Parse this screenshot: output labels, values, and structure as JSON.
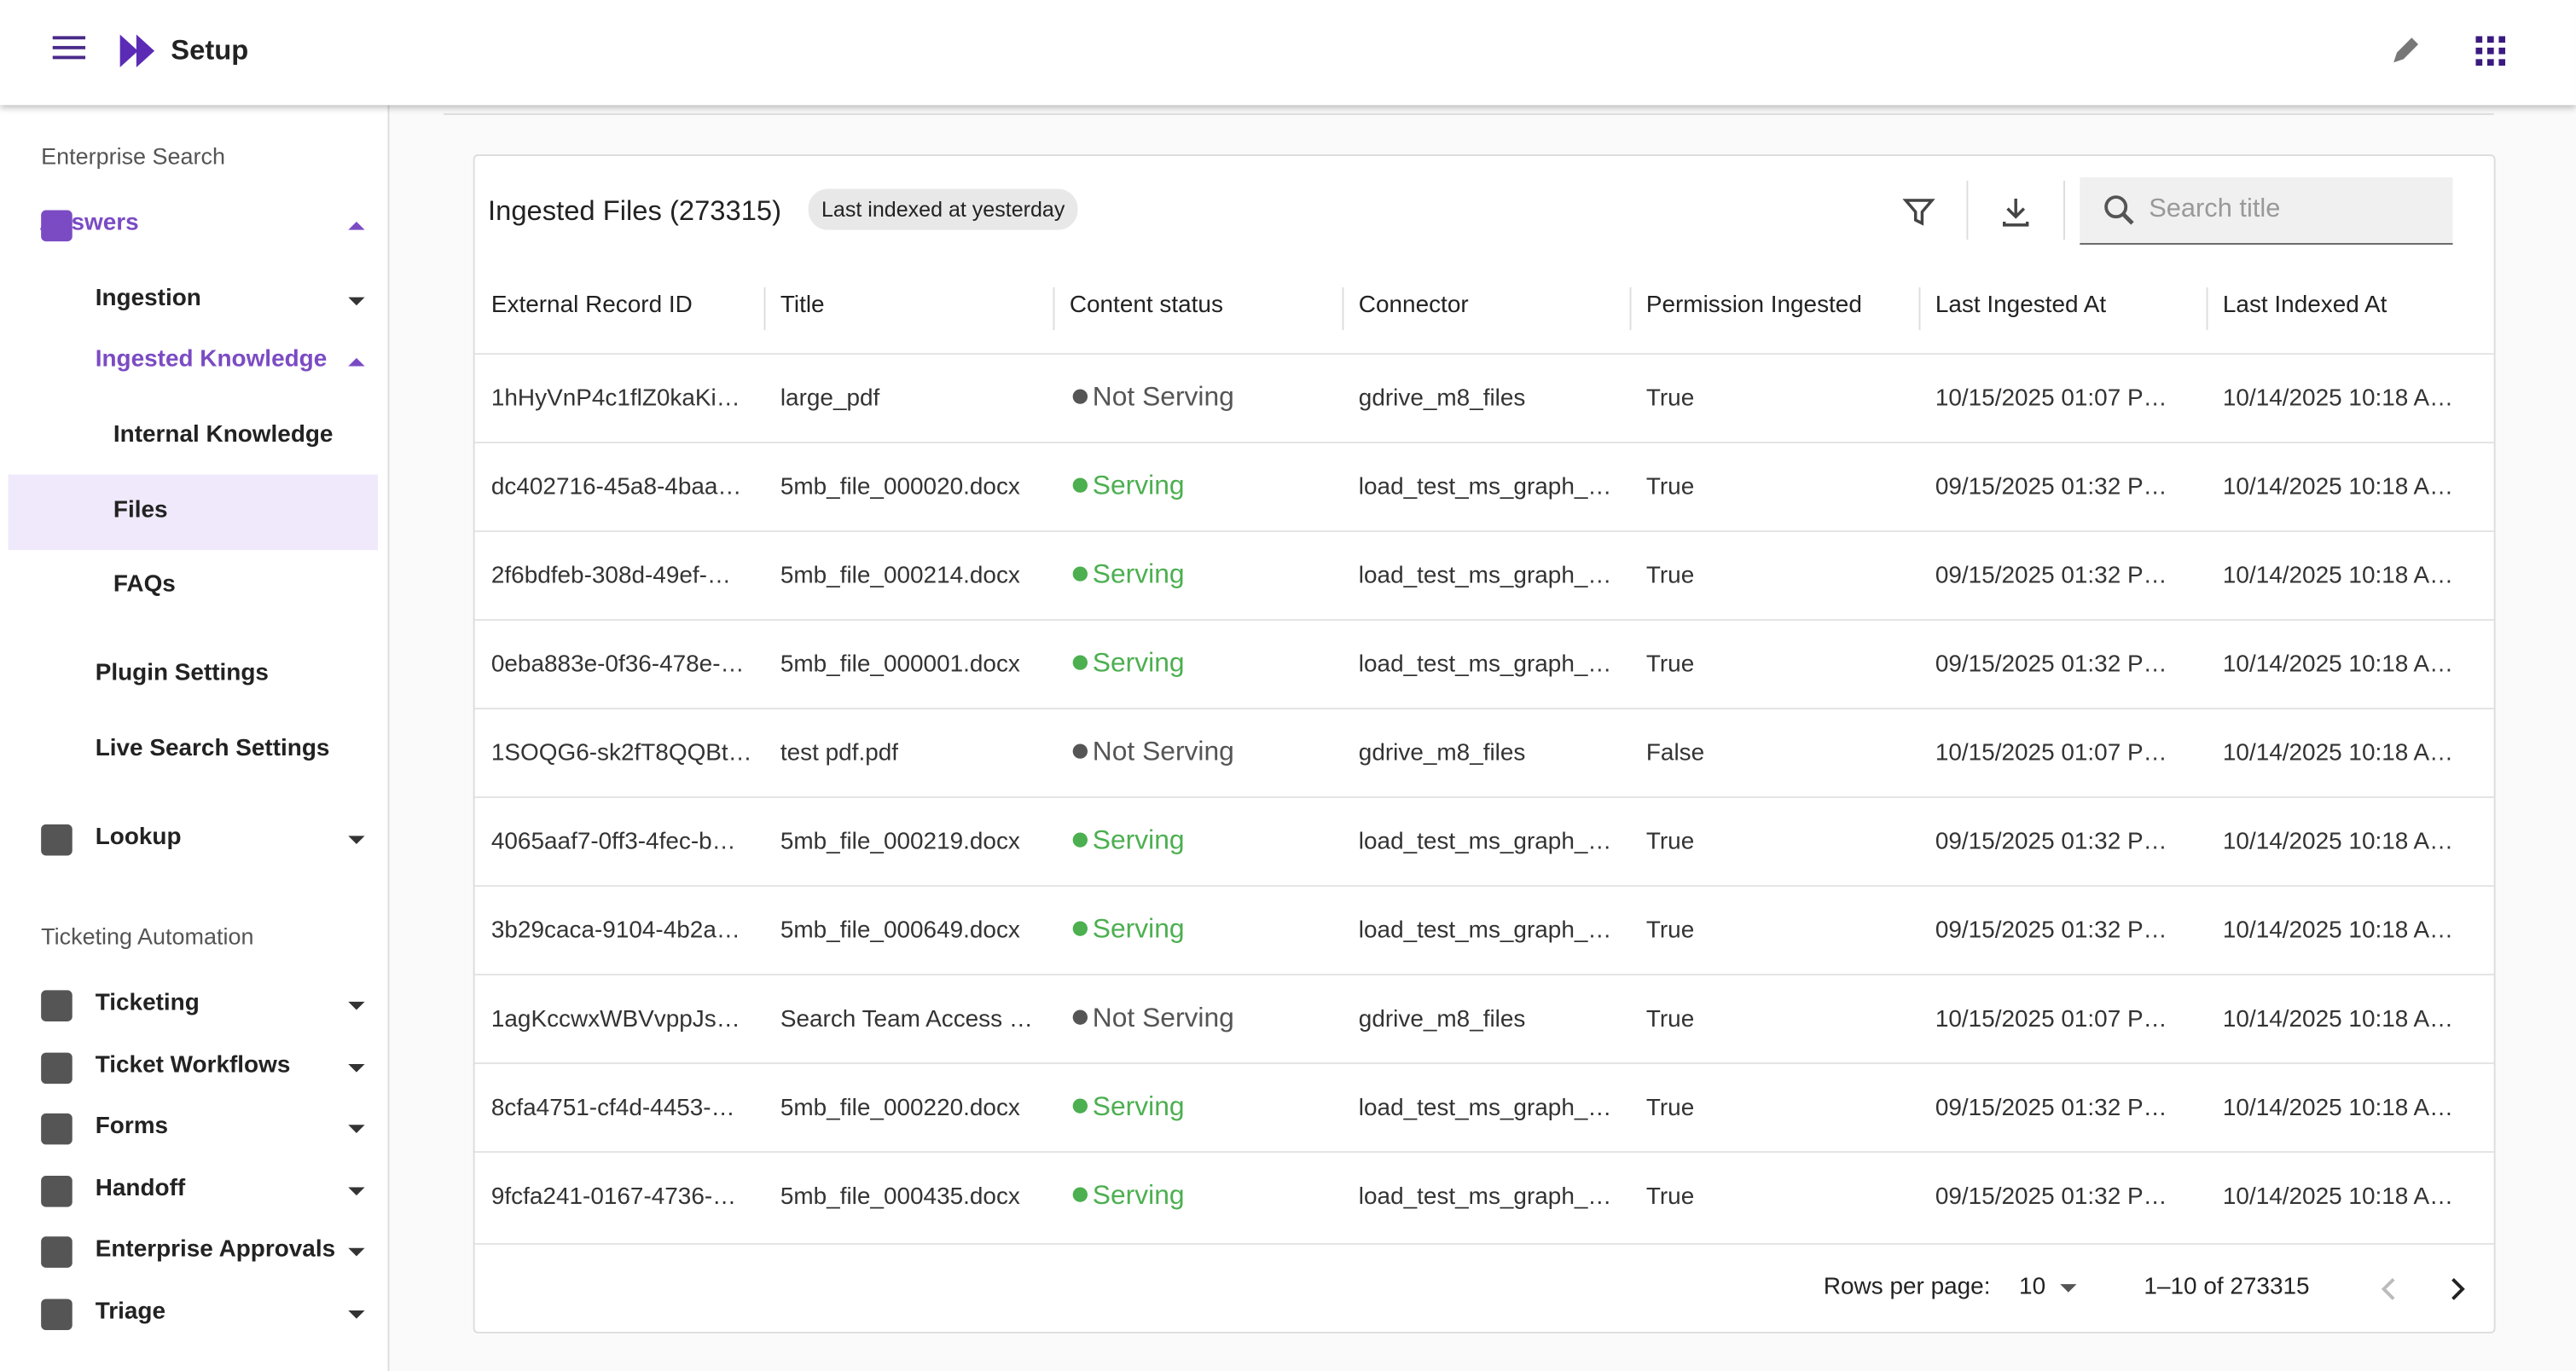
{
  "header": {
    "title": "Setup"
  },
  "sidebar": {
    "sections": [
      {
        "label": "Enterprise Search",
        "items": [
          "Answers",
          "Ingestion",
          "Ingested Knowledge",
          "Internal Knowledge",
          "Files",
          "FAQs",
          "Plugin Settings",
          "Live Search Settings",
          "Lookup"
        ]
      },
      {
        "label": "Ticketing Automation",
        "items": [
          "Ticketing",
          "Ticket Workflows",
          "Forms",
          "Handoff",
          "Enterprise Approvals",
          "Triage"
        ]
      }
    ]
  },
  "card": {
    "title": "Ingested Files (273315)",
    "badge": "Last indexed at yesterday",
    "search_placeholder": "Search title"
  },
  "table": {
    "columns": [
      "External Record ID",
      "Title",
      "Content status",
      "Connector",
      "Permission Ingested",
      "Last Ingested At",
      "Last Indexed At"
    ],
    "rows": [
      [
        "1hHyVnP4c1flZ0kaKi…",
        "large_pdf",
        "Not Serving",
        "gdrive_m8_files",
        "True",
        "10/15/2025 01:07 P…",
        "10/14/2025 10:18 A…"
      ],
      [
        "dc402716-45a8-4baa…",
        "5mb_file_000020.docx",
        "Serving",
        "load_test_ms_graph_…",
        "True",
        "09/15/2025 01:32 P…",
        "10/14/2025 10:18 A…"
      ],
      [
        "2f6bdfeb-308d-49ef-…",
        "5mb_file_000214.docx",
        "Serving",
        "load_test_ms_graph_…",
        "True",
        "09/15/2025 01:32 P…",
        "10/14/2025 10:18 A…"
      ],
      [
        "0eba883e-0f36-478e-…",
        "5mb_file_000001.docx",
        "Serving",
        "load_test_ms_graph_…",
        "True",
        "09/15/2025 01:32 P…",
        "10/14/2025 10:18 A…"
      ],
      [
        "1SOQG6-sk2fT8QQBt…",
        "test pdf.pdf",
        "Not Serving",
        "gdrive_m8_files",
        "False",
        "10/15/2025 01:07 P…",
        "10/14/2025 10:18 A…"
      ],
      [
        "4065aaf7-0ff3-4fec-b…",
        "5mb_file_000219.docx",
        "Serving",
        "load_test_ms_graph_…",
        "True",
        "09/15/2025 01:32 P…",
        "10/14/2025 10:18 A…"
      ],
      [
        "3b29caca-9104-4b2a…",
        "5mb_file_000649.docx",
        "Serving",
        "load_test_ms_graph_…",
        "True",
        "09/15/2025 01:32 P…",
        "10/14/2025 10:18 A…"
      ],
      [
        "1agKccwxWBVvppJs…",
        "Search Team Access …",
        "Not Serving",
        "gdrive_m8_files",
        "True",
        "10/15/2025 01:07 P…",
        "10/14/2025 10:18 A…"
      ],
      [
        "8cfa4751-cf4d-4453-…",
        "5mb_file_000220.docx",
        "Serving",
        "load_test_ms_graph_…",
        "True",
        "09/15/2025 01:32 P…",
        "10/14/2025 10:18 A…"
      ],
      [
        "9fcfa241-0167-4736-…",
        "5mb_file_000435.docx",
        "Serving",
        "load_test_ms_graph_…",
        "True",
        "09/15/2025 01:32 P…",
        "10/14/2025 10:18 A…"
      ]
    ]
  },
  "pagination": {
    "rows_per_page_label": "Rows per page:",
    "rows_per_page": "10",
    "range": "1–10 of 273315"
  }
}
